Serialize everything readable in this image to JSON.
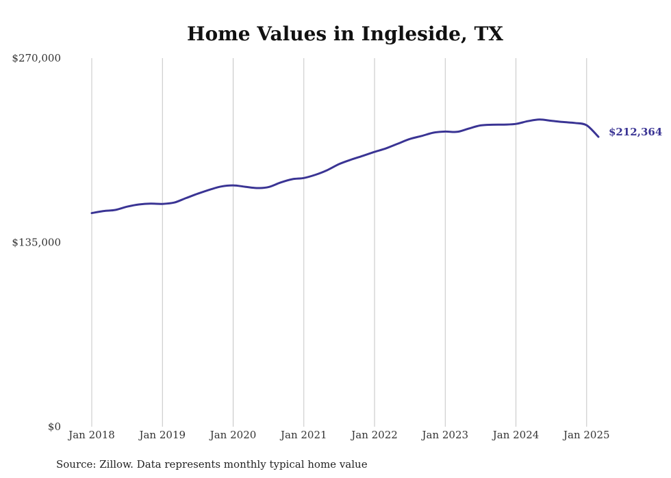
{
  "source_note": "Source: Zillow. Data represents monthly typical home value",
  "colors": {
    "line": "#3a3494",
    "grid": "#c4c4c4",
    "text": "#333333"
  },
  "chart_data": {
    "type": "line",
    "title": "Home Values in Ingleside, TX",
    "xlabel": "",
    "ylabel": "",
    "ylim": [
      0,
      270000
    ],
    "yticks": [
      0,
      135000,
      270000
    ],
    "ytick_labels": [
      "$0",
      "$135,000",
      "$270,000"
    ],
    "xlim": [
      "2018-01",
      "2025-03"
    ],
    "xtick_labels": [
      "Jan 2018",
      "Jan 2019",
      "Jan 2020",
      "Jan 2021",
      "Jan 2022",
      "Jan 2023",
      "Jan 2024",
      "Jan 2025"
    ],
    "grid": "vertical",
    "end_label": "$212,364",
    "series": [
      {
        "values": [
          {
            "x": "2018-01",
            "y": 156500
          },
          {
            "x": "2018-03",
            "y": 158000
          },
          {
            "x": "2018-05",
            "y": 158800
          },
          {
            "x": "2018-07",
            "y": 161200
          },
          {
            "x": "2018-09",
            "y": 162800
          },
          {
            "x": "2018-11",
            "y": 163400
          },
          {
            "x": "2019-01",
            "y": 163200
          },
          {
            "x": "2019-03",
            "y": 164200
          },
          {
            "x": "2019-05",
            "y": 167500
          },
          {
            "x": "2019-07",
            "y": 170700
          },
          {
            "x": "2019-09",
            "y": 173600
          },
          {
            "x": "2019-11",
            "y": 176000
          },
          {
            "x": "2020-01",
            "y": 176800
          },
          {
            "x": "2020-03",
            "y": 175800
          },
          {
            "x": "2020-05",
            "y": 174800
          },
          {
            "x": "2020-07",
            "y": 175500
          },
          {
            "x": "2020-09",
            "y": 178800
          },
          {
            "x": "2020-11",
            "y": 181300
          },
          {
            "x": "2021-01",
            "y": 182200
          },
          {
            "x": "2021-03",
            "y": 184600
          },
          {
            "x": "2021-05",
            "y": 188000
          },
          {
            "x": "2021-07",
            "y": 192400
          },
          {
            "x": "2021-09",
            "y": 195600
          },
          {
            "x": "2021-11",
            "y": 198400
          },
          {
            "x": "2022-01",
            "y": 201300
          },
          {
            "x": "2022-03",
            "y": 204000
          },
          {
            "x": "2022-05",
            "y": 207400
          },
          {
            "x": "2022-07",
            "y": 210800
          },
          {
            "x": "2022-09",
            "y": 213000
          },
          {
            "x": "2022-11",
            "y": 215400
          },
          {
            "x": "2023-01",
            "y": 216200
          },
          {
            "x": "2023-03",
            "y": 216000
          },
          {
            "x": "2023-05",
            "y": 218400
          },
          {
            "x": "2023-07",
            "y": 220700
          },
          {
            "x": "2023-09",
            "y": 221200
          },
          {
            "x": "2023-11",
            "y": 221300
          },
          {
            "x": "2024-01",
            "y": 221800
          },
          {
            "x": "2024-03",
            "y": 223800
          },
          {
            "x": "2024-05",
            "y": 225000
          },
          {
            "x": "2024-07",
            "y": 224100
          },
          {
            "x": "2024-09",
            "y": 223200
          },
          {
            "x": "2024-11",
            "y": 222500
          },
          {
            "x": "2025-01",
            "y": 220800
          },
          {
            "x": "2025-03",
            "y": 212364
          }
        ]
      }
    ]
  }
}
